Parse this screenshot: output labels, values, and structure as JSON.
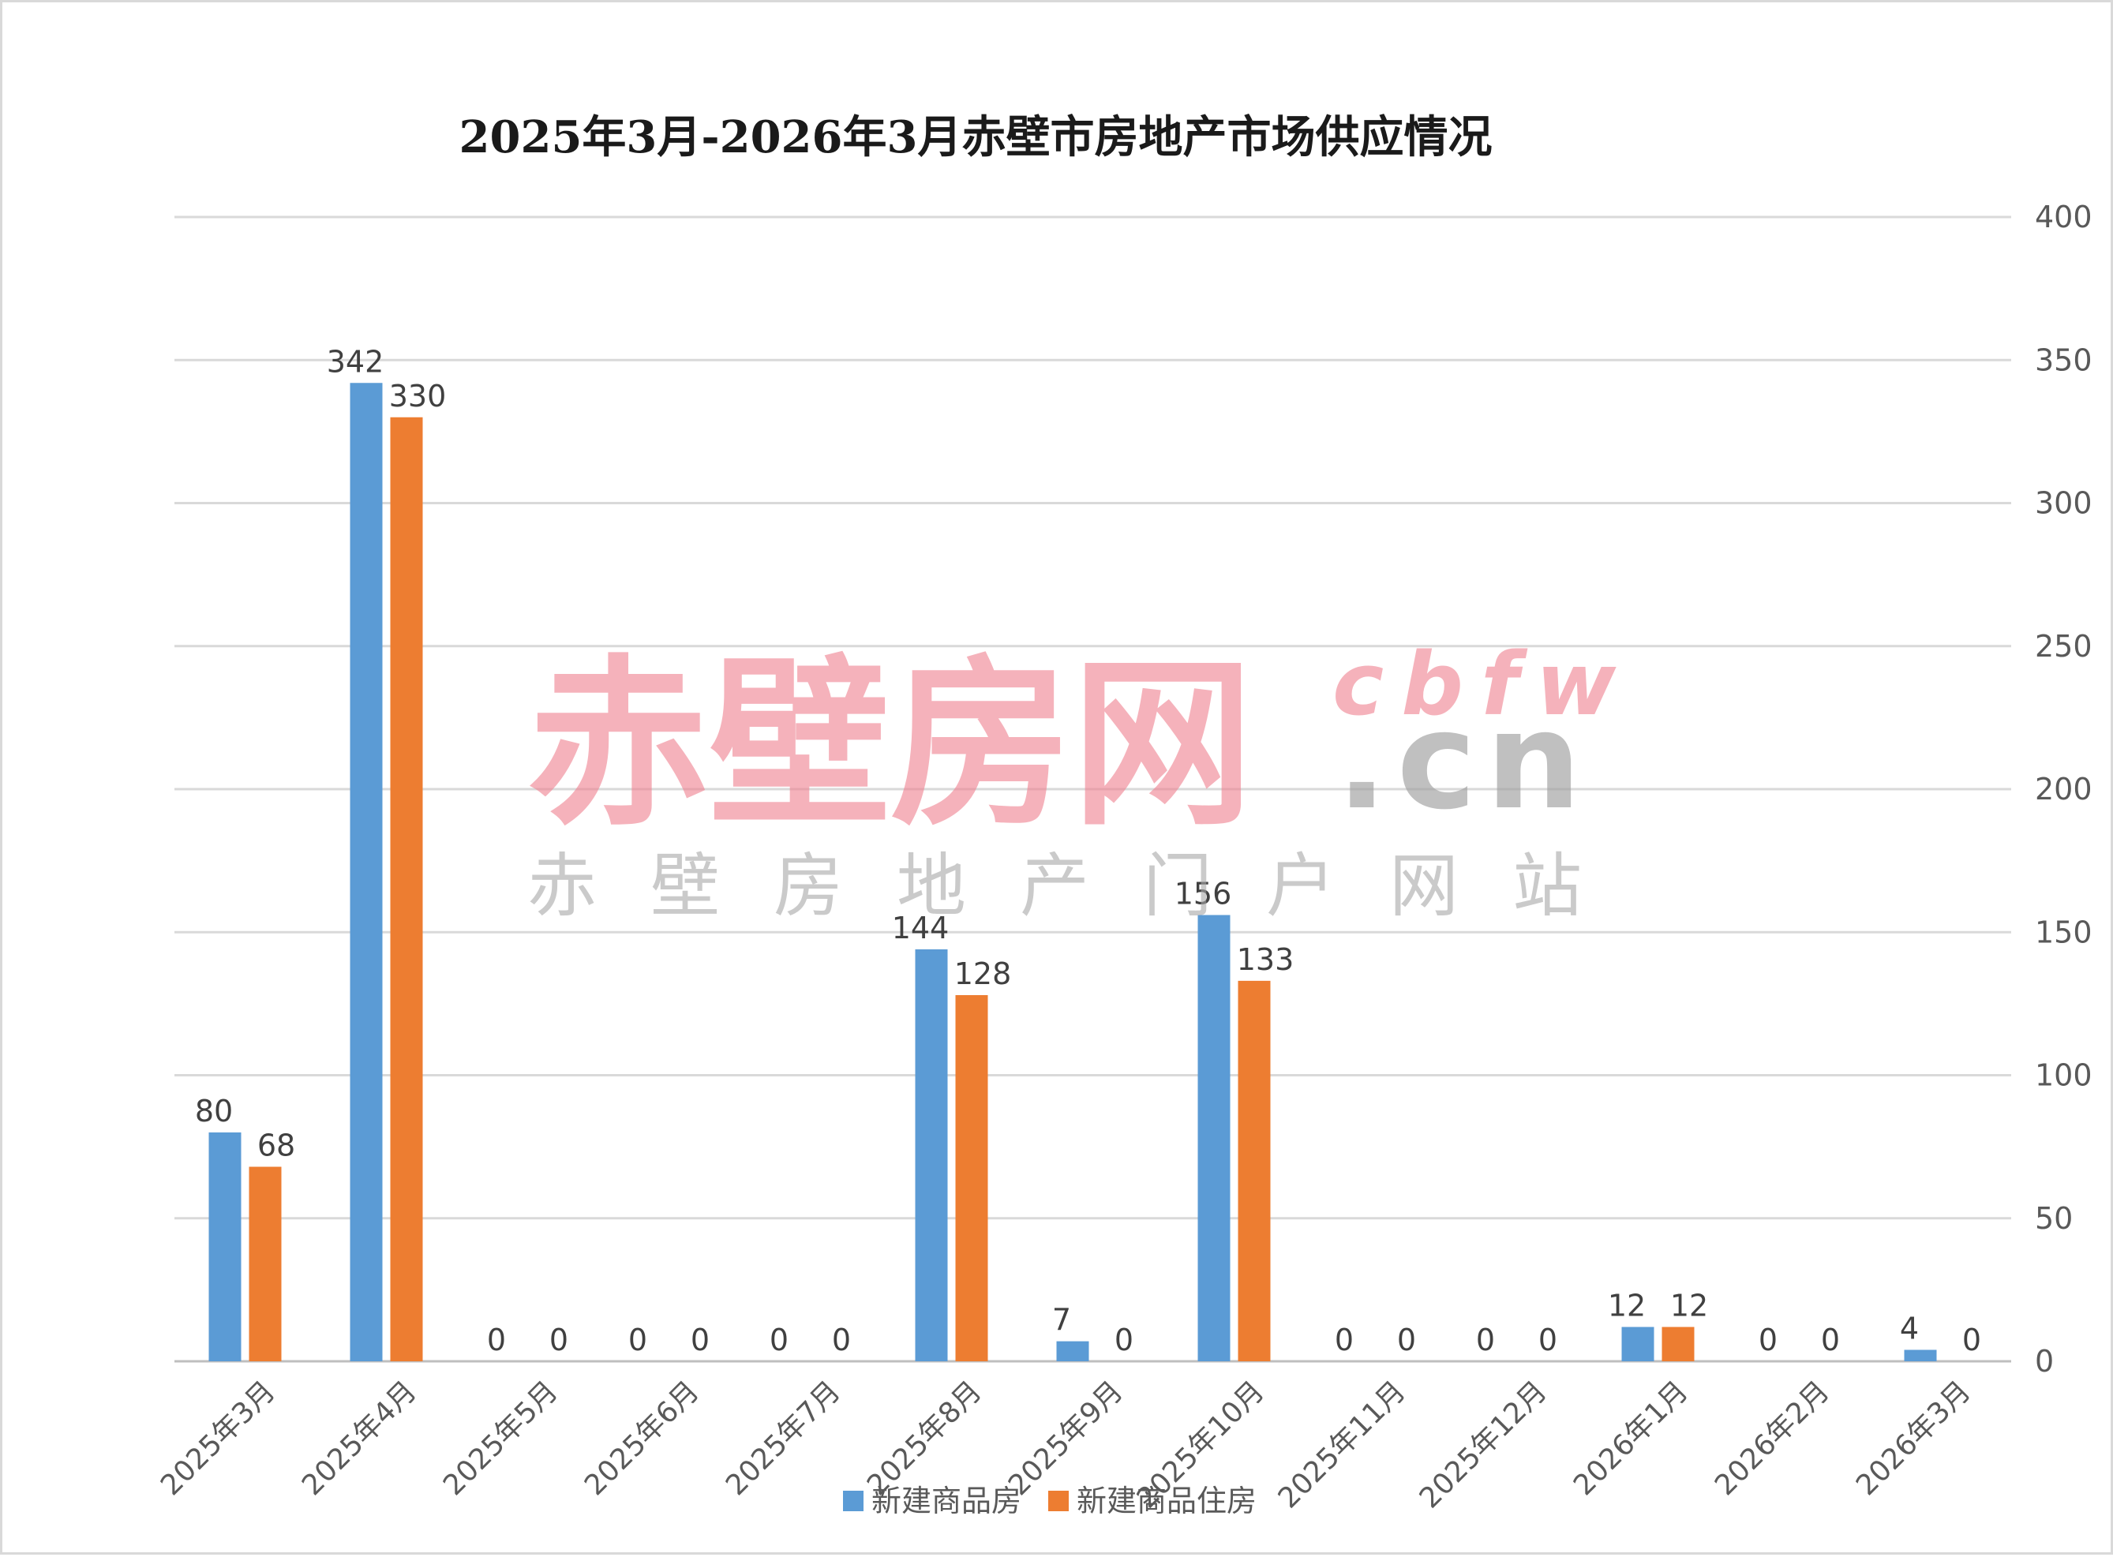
{
  "chart_data": {
    "type": "bar",
    "title": "2025年3月-2026年3月赤壁市房地产市场供应情况",
    "categories": [
      "2025年3月",
      "2025年4月",
      "2025年5月",
      "2025年6月",
      "2025年7月",
      "2025年8月",
      "2025年9月",
      "2025年10月",
      "2025年11月",
      "2025年12月",
      "2026年1月",
      "2026年2月",
      "2026年3月"
    ],
    "series": [
      {
        "name": "新建商品房",
        "color": "#5b9bd5",
        "values": [
          80,
          342,
          0,
          0,
          0,
          144,
          7,
          156,
          0,
          0,
          12,
          0,
          4
        ]
      },
      {
        "name": "新建商品住房",
        "color": "#ed7d31",
        "values": [
          68,
          330,
          0,
          0,
          0,
          128,
          0,
          133,
          0,
          0,
          12,
          0,
          0
        ]
      }
    ],
    "ylim": [
      0,
      400
    ],
    "yticks": [
      0,
      50,
      100,
      150,
      200,
      250,
      300,
      350,
      400
    ],
    "y_axis_side": "right",
    "grid": true,
    "legend_position": "bottom",
    "data_labels": true
  },
  "watermark": {
    "main": "赤壁房网",
    "domain_top": "cbfw",
    "domain_bottom": ".cn",
    "subtitle": [
      "赤",
      "壁",
      "房",
      "地",
      "产",
      "门",
      "户",
      "网",
      "站"
    ]
  }
}
